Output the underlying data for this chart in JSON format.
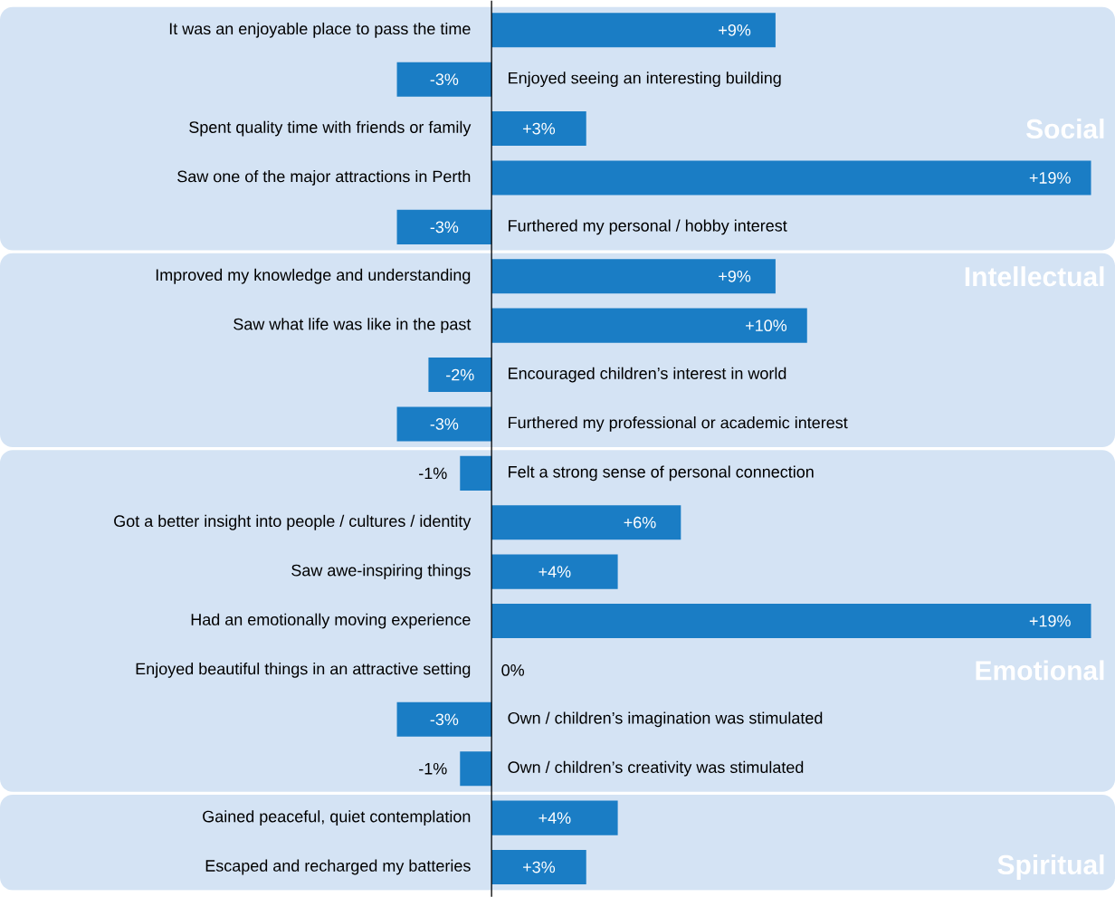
{
  "chart_data": {
    "type": "bar",
    "orientation": "horizontal",
    "color": "#1a7dc5",
    "categories": [
      "It was an enjoyable place to pass the time",
      "Enjoyed seeing an interesting building",
      "Spent quality time with friends or family",
      "Saw one of the major attractions in Perth",
      "Furthered my personal / hobby interest",
      "Improved my knowledge and understanding",
      "Saw what life was like in the past",
      "Encouraged children’s interest in world",
      "Furthered my professional or academic interest",
      "Felt a strong sense of personal connection",
      "Got a better insight into people / cultures / identity",
      "Saw awe-inspiring things",
      "Had an emotionally moving experience",
      "Enjoyed beautiful things in an attractive setting",
      "Own / children’s imagination was stimulated",
      "Own / children’s creativity was stimulated",
      "Gained peaceful, quiet contemplation",
      "Escaped and recharged my batteries"
    ],
    "values": [
      9,
      -3,
      3,
      19,
      -3,
      9,
      10,
      -2,
      -3,
      -1,
      6,
      4,
      19,
      0,
      -3,
      -1,
      4,
      3
    ],
    "value_labels": [
      "+9%",
      "-3%",
      "+3%",
      "+19%",
      "-3%",
      "+9%",
      "+10%",
      "-2%",
      "-3%",
      "-1%",
      "+6%",
      "+4%",
      "+19%",
      "0%",
      "-3%",
      "-1%",
      "+4%",
      "+3%"
    ],
    "bands": [
      {
        "axis": "y",
        "from": "It was an enjoyable place to pass the time",
        "to": "Furthered my personal / hobby interest",
        "label": "Social",
        "color": "#d4e3f4"
      },
      {
        "axis": "y",
        "from": "Improved my knowledge and understanding",
        "to": "Furthered my professional or academic interest",
        "label": "Intellectual",
        "color": "#d4e3f4"
      },
      {
        "axis": "y",
        "from": "Felt a strong sense of personal connection",
        "to": "Own / children’s creativity was stimulated",
        "label": "Emotional",
        "color": "#d4e3f4"
      },
      {
        "axis": "y",
        "from": "Gained peaceful, quiet contemplation",
        "to": "Escaped and recharged my batteries",
        "label": "Spiritual",
        "color": "#d4e3f4"
      }
    ]
  }
}
